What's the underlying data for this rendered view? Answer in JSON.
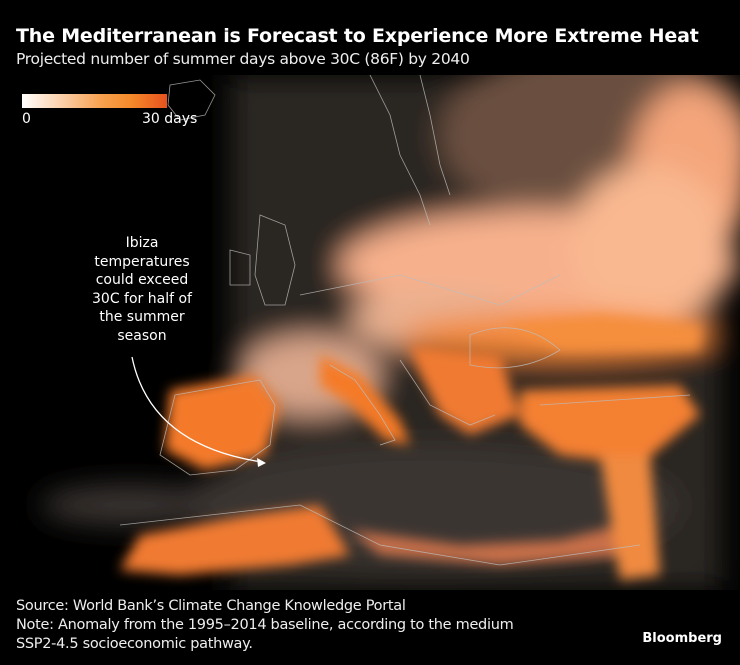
{
  "header": {
    "title": "The Mediterranean is Forecast to Experience More Extreme Heat",
    "subtitle": "Projected number of summer days above 30C (86F) by 2040"
  },
  "legend": {
    "min_label": "0",
    "max_label": "30 days",
    "min_value": 0,
    "max_value": 30,
    "colors": [
      "#ffffff",
      "#f7a04e",
      "#e8531f"
    ]
  },
  "map": {
    "region": "Europe and the Mediterranean",
    "background_color": "#000000",
    "border_color": "#bdbdbd"
  },
  "annotation": {
    "text": "Ibiza temperatures could exceed 30C for half of the summer season",
    "target": "Ibiza"
  },
  "footer": {
    "source": "Source: World Bank’s Climate Change Knowledge Portal",
    "note_line1": "Note: Anomaly from the 1995–2014 baseline, according to the medium",
    "note_line2": "SSP2-4.5 socioeconomic pathway.",
    "brand": "Bloomberg"
  }
}
